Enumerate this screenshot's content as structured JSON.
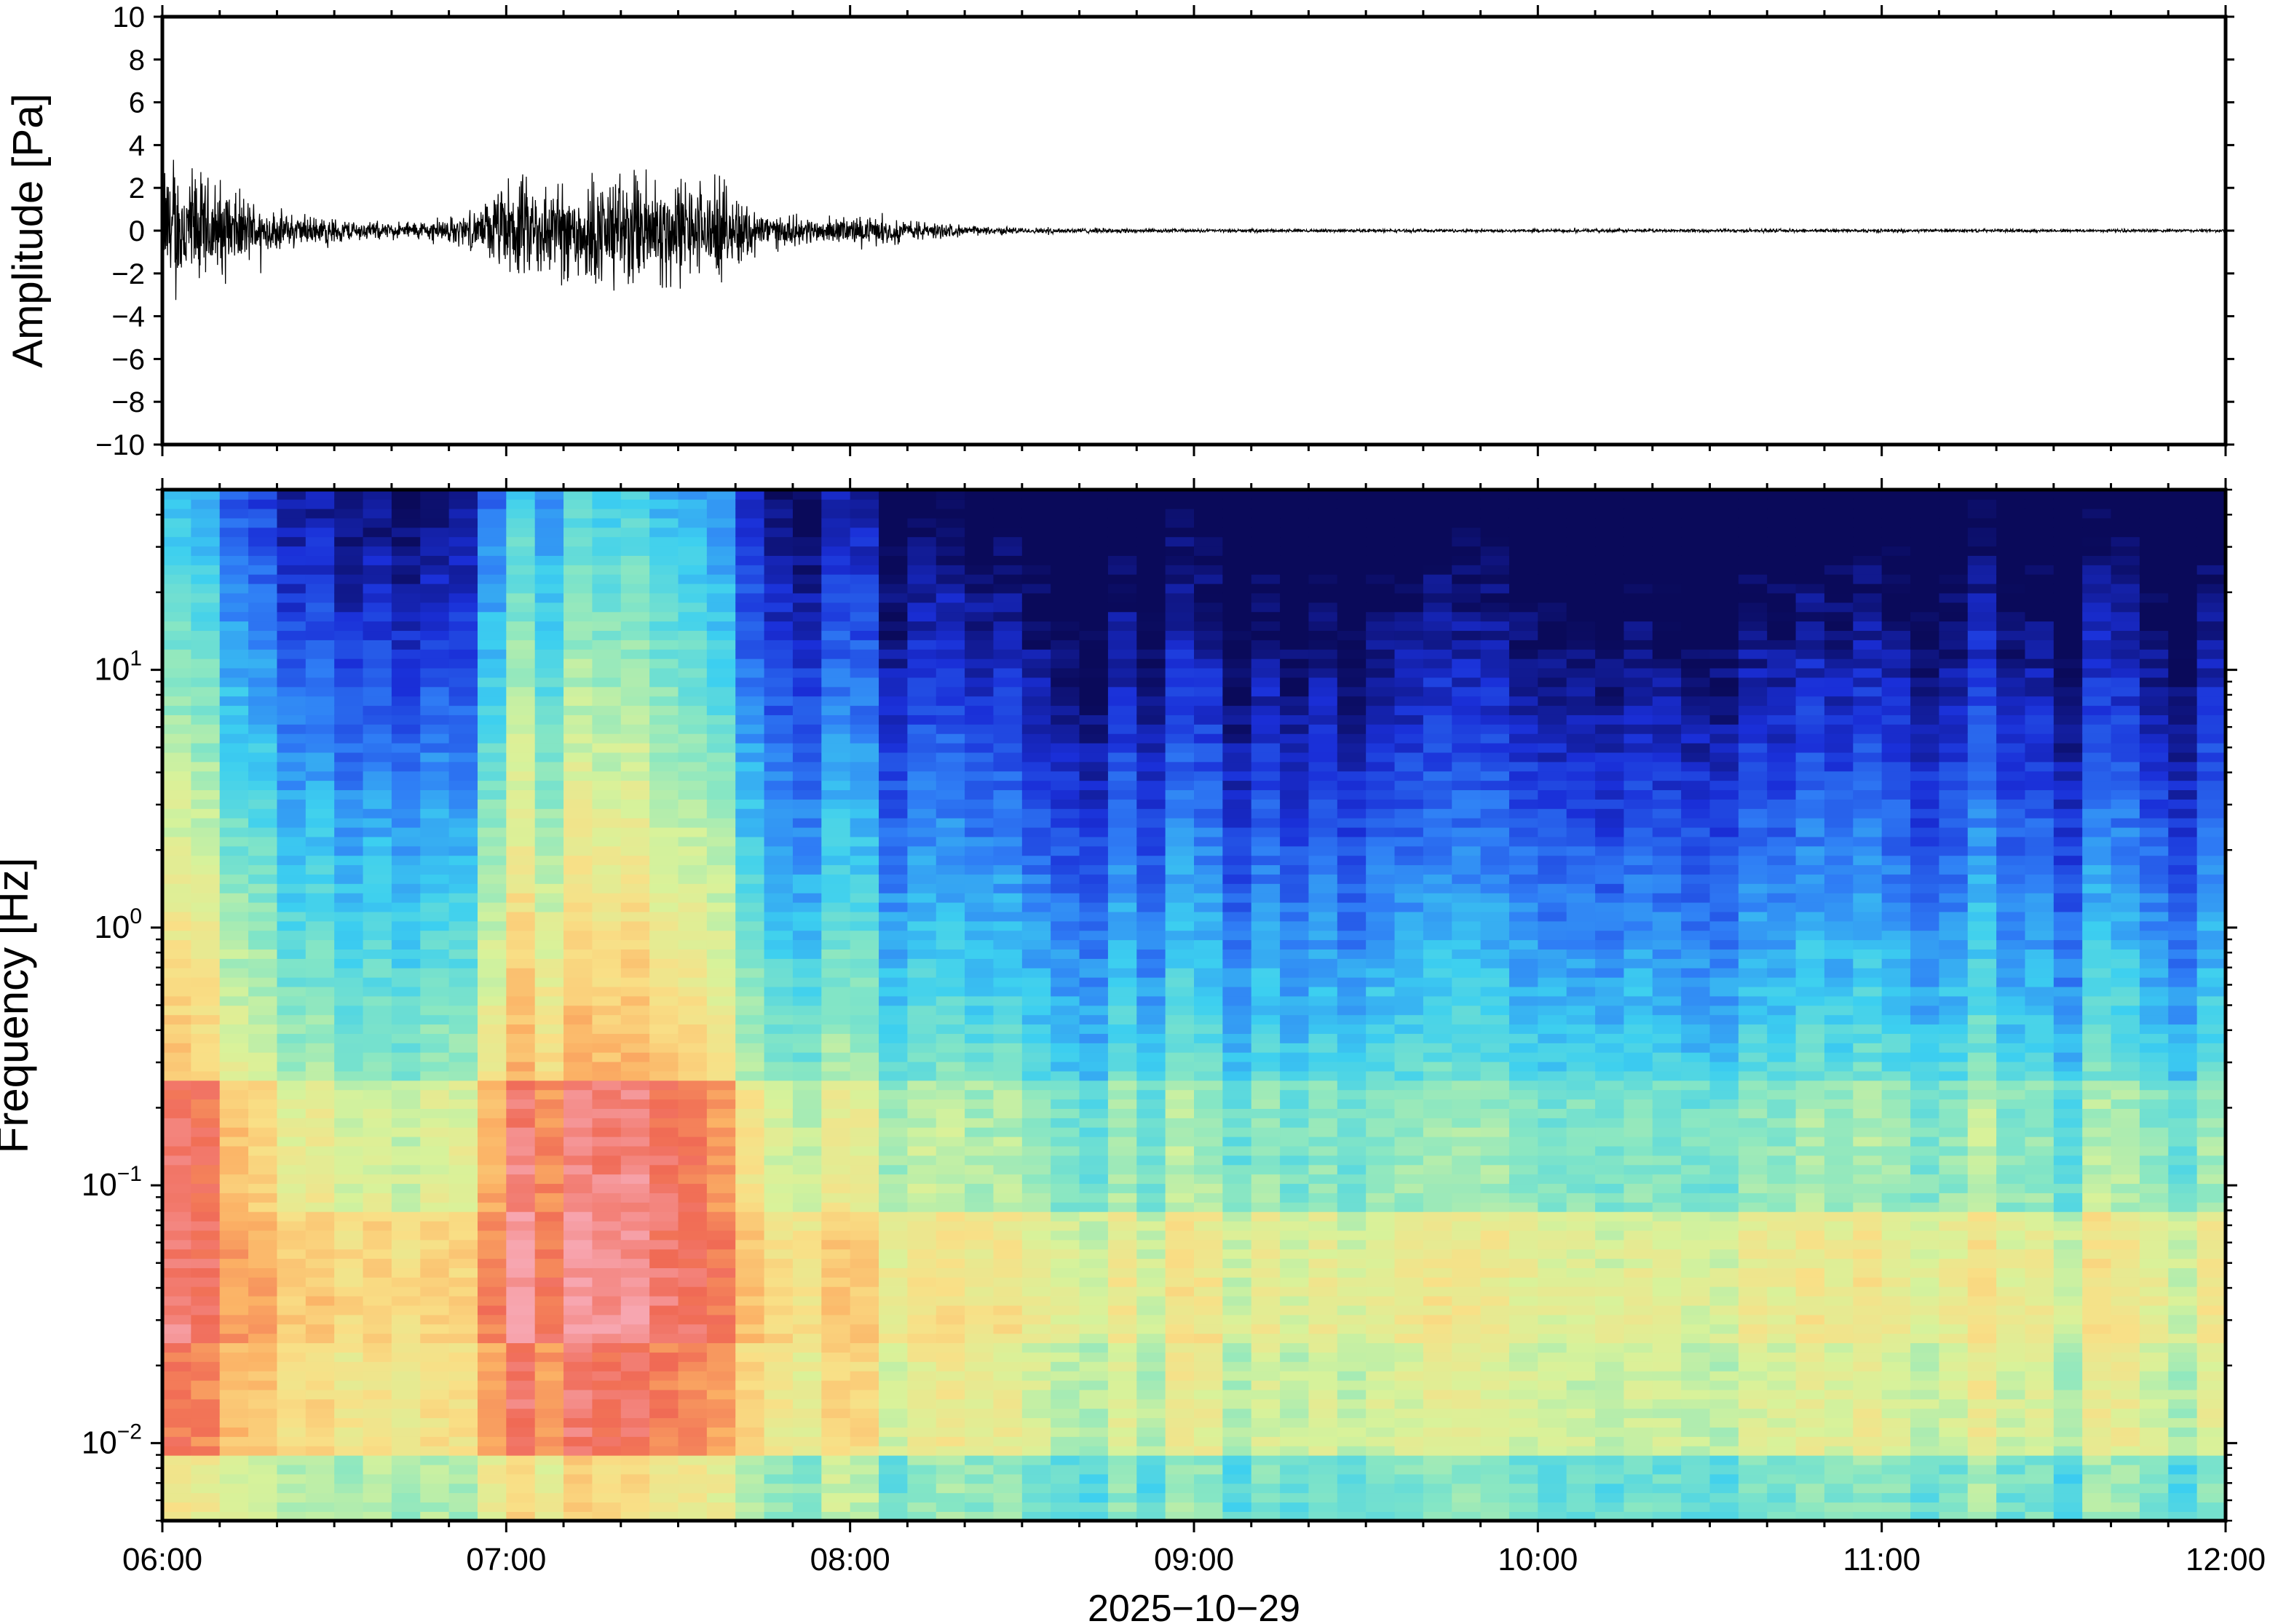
{
  "chart_data": [
    {
      "type": "line",
      "title": "",
      "ylabel": "Amplitude [Pa]",
      "ylim": [
        -10,
        10
      ],
      "yticks": [
        "10",
        "8",
        "6",
        "4",
        "2",
        "0",
        "−2",
        "−4",
        "−6",
        "−8",
        "−10"
      ],
      "x_start": "06:00",
      "x_end": "12:00",
      "grid": false,
      "line_color": "#000000",
      "series": [
        {
          "x": [
            "06:00",
            "06:05",
            "06:10",
            "06:15",
            "06:20",
            "06:25",
            "06:30",
            "06:35",
            "06:40",
            "06:45",
            "06:50",
            "06:55",
            "07:00",
            "07:05",
            "07:10",
            "07:15",
            "07:20",
            "07:25",
            "07:30",
            "07:35",
            "07:40",
            "07:45",
            "07:50",
            "07:55",
            "08:00",
            "08:05",
            "08:10",
            "08:15",
            "08:20",
            "08:30",
            "08:45",
            "09:00",
            "09:30",
            "10:00",
            "10:30",
            "11:00",
            "11:30",
            "12:00"
          ],
          "envelope": [
            4.5,
            4.0,
            3.0,
            2.0,
            1.2,
            1.0,
            0.8,
            0.6,
            0.5,
            0.6,
            0.8,
            1.2,
            3.0,
            3.2,
            3.0,
            3.5,
            3.6,
            3.8,
            3.4,
            3.0,
            2.5,
            1.2,
            0.9,
            0.8,
            0.9,
            0.8,
            0.7,
            0.5,
            0.3,
            0.2,
            0.15,
            0.1,
            0.1,
            0.1,
            0.1,
            0.1,
            0.1,
            0.1
          ]
        }
      ]
    },
    {
      "type": "heatmap",
      "title": "",
      "ylabel": "Frequency [Hz]",
      "xlabel": "2025−10−29",
      "y_scale": "log",
      "ylim": [
        0.005,
        50
      ],
      "yticks": [
        {
          "base": "10",
          "exp": "−2",
          "value": 0.01
        },
        {
          "base": "10",
          "exp": "−1",
          "value": 0.1
        },
        {
          "base": "10",
          "exp": "0",
          "value": 1
        },
        {
          "base": "10",
          "exp": "1",
          "value": 10
        }
      ],
      "x_ticklabels": [
        "06:00",
        "07:00",
        "08:00",
        "09:00",
        "10:00",
        "11:00",
        "12:00"
      ],
      "colormap": "jet",
      "colormap_stops": [
        "#0a0a5a",
        "#1a2fd8",
        "#2f7df5",
        "#3ccff0",
        "#86e6c4",
        "#d8f29a",
        "#f9df86",
        "#fbb064",
        "#f06a55",
        "#f7a6b0"
      ],
      "columns": 72,
      "intensity_by_hour": [
        {
          "hour": "06:00",
          "note_level": "high"
        },
        {
          "hour": "07:00",
          "note_level": "high"
        },
        {
          "hour": "08:00",
          "note_level": "medium"
        },
        {
          "hour": "09:00",
          "note_level": "low"
        },
        {
          "hour": "10:00",
          "note_level": "low"
        },
        {
          "hour": "11:00",
          "note_level": "low"
        },
        {
          "hour": "12:00",
          "note_level": "low"
        }
      ]
    }
  ]
}
